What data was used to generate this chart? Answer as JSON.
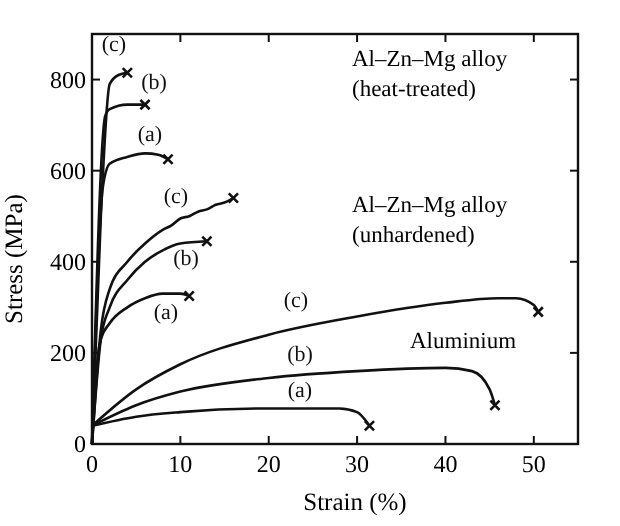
{
  "chart_data": {
    "type": "line",
    "xlabel": "Strain (%)",
    "ylabel": "Stress (MPa)",
    "xlim": [
      0,
      55
    ],
    "ylim": [
      0,
      900
    ],
    "xticks": [
      0,
      10,
      20,
      30,
      40,
      50
    ],
    "yticks": [
      0,
      200,
      400,
      600,
      800
    ],
    "grid": false,
    "marker": "none",
    "line_style": "solid",
    "series": [
      {
        "name": "(c)",
        "color": "#111111",
        "x": [
          0,
          1,
          2,
          3,
          4
        ],
        "values": [
          0,
          500,
          790,
          810,
          815
        ]
      },
      {
        "name": "(b)",
        "color": "#111111",
        "x": [
          0,
          1.5,
          2,
          4,
          6
        ],
        "values": [
          0,
          720,
          735,
          745,
          745
        ]
      },
      {
        "name": "(a)",
        "color": "#111111",
        "x": [
          0,
          1.2,
          2,
          4,
          6,
          7.5,
          8.6
        ],
        "values": [
          0,
          560,
          615,
          630,
          638,
          635,
          625
        ]
      },
      {
        "name": "(c)",
        "color": "#111111",
        "x": [
          0,
          1,
          2,
          4,
          6,
          8,
          9,
          10,
          11,
          12,
          13,
          14,
          15,
          16
        ],
        "values": [
          0,
          250,
          340,
          400,
          440,
          470,
          480,
          495,
          500,
          510,
          515,
          525,
          530,
          540
        ]
      },
      {
        "name": "(b)",
        "color": "#111111",
        "x": [
          0,
          1,
          2,
          4,
          6,
          8,
          10,
          13
        ],
        "values": [
          0,
          230,
          300,
          360,
          400,
          425,
          440,
          445
        ]
      },
      {
        "name": "(a)",
        "color": "#111111",
        "x": [
          0,
          0.7,
          1,
          2,
          4,
          6,
          8,
          10,
          11
        ],
        "values": [
          0,
          200,
          230,
          265,
          300,
          320,
          330,
          330,
          325
        ]
      },
      {
        "name": "(c)",
        "color": "#111111",
        "x": [
          0,
          5,
          10,
          20,
          30,
          40,
          46,
          48,
          50,
          50.5
        ],
        "values": [
          40,
          120,
          175,
          240,
          280,
          310,
          320,
          320,
          305,
          290
        ]
      },
      {
        "name": "(b)",
        "color": "#111111",
        "x": [
          0,
          5,
          10,
          20,
          30,
          40,
          43,
          45,
          45.6
        ],
        "values": [
          40,
          85,
          115,
          145,
          160,
          167,
          160,
          120,
          85
        ]
      },
      {
        "name": "(a)",
        "color": "#111111",
        "x": [
          0,
          5,
          10,
          20,
          28,
          30,
          31.4
        ],
        "values": [
          40,
          60,
          70,
          78,
          78,
          70,
          40
        ]
      },
      {
        "type": "scatter",
        "marker": "cross",
        "color": "#111111",
        "x": [
          4,
          6,
          8.6,
          16,
          13,
          11,
          50.5,
          45.6,
          31.4
        ],
        "values": [
          815,
          745,
          625,
          540,
          445,
          325,
          290,
          85,
          40
        ]
      }
    ],
    "annotations": [
      "Al–Zn–Mg alloy\n(heat-treated)",
      "Al–Zn–Mg alloy\n(unhardened)",
      "Aluminium"
    ]
  }
}
